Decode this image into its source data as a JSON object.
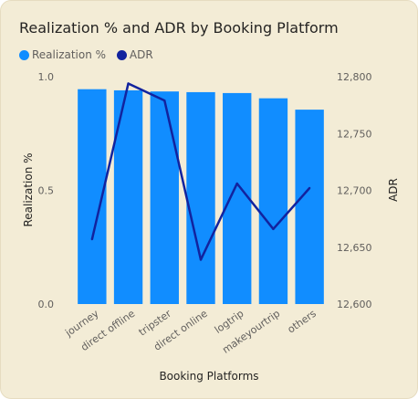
{
  "title": "Realization % and ADR by Booking Platform",
  "legend": [
    {
      "name": "Realization %",
      "color": "#118dff"
    },
    {
      "name": "ADR",
      "color": "#12239e"
    }
  ],
  "chart_data": {
    "type": "bar",
    "combo": "bar+line",
    "title": "Realization % and ADR by Booking Platform",
    "xlabel": "Booking Platforms",
    "ylabel": "Realization %",
    "y2label": "ADR",
    "categories": [
      "journey",
      "direct offline",
      "tripster",
      "direct online",
      "logtrip",
      "makeyourtrip",
      "others"
    ],
    "series": [
      {
        "name": "Realization %",
        "type": "bar",
        "axis": "left",
        "color": "#118dff",
        "values": [
          0.945,
          0.94,
          0.935,
          0.932,
          0.928,
          0.905,
          0.855
        ]
      },
      {
        "name": "ADR",
        "type": "line",
        "axis": "right",
        "color": "#12239e",
        "values": [
          12657,
          12794,
          12779,
          12639,
          12706,
          12666,
          12702
        ]
      }
    ],
    "ylim": [
      0,
      1.0
    ],
    "yticks": [
      "0.0",
      "0.5",
      "1.0"
    ],
    "y2lim": [
      12600,
      12800
    ],
    "y2ticks": [
      "12,600",
      "12,650",
      "12,700",
      "12,750",
      "12,800"
    ],
    "grid": false,
    "legend_position": "top-left"
  }
}
